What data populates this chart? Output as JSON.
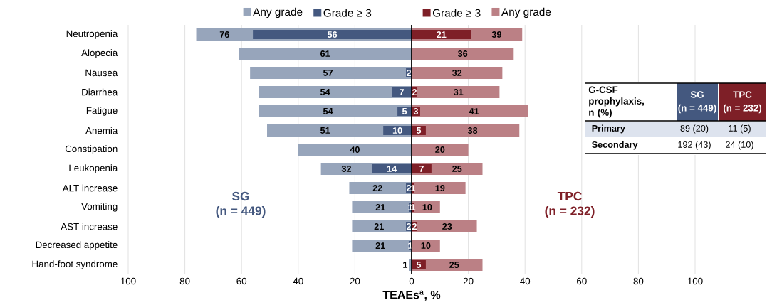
{
  "chart_data": [
    {
      "type": "bar",
      "orientation": "horizontal",
      "xlabel": "TEAEs$^{a}$, %",
      "categories": [
        "Neutropenia",
        "Alopecia",
        "Nausea",
        "Diarrhea",
        "Fatigue",
        "Anemia",
        "Constipation",
        "Leukopenia",
        "ALT increase",
        "Vomiting",
        "AST increase",
        "Decreased appetite",
        "Hand-foot syndrome"
      ],
      "series": [
        {
          "name": "Any grade",
          "color": "#97a5bb",
          "values": [
            76,
            61,
            57,
            54,
            54,
            51,
            40,
            32,
            22,
            21,
            21,
            21,
            1
          ]
        },
        {
          "name": "Grade ≥ 3",
          "color": "#44587f",
          "values": [
            56,
            null,
            2,
            7,
            5,
            10,
            null,
            14,
            2,
            1,
            2,
            1,
            null
          ]
        }
      ],
      "xlim": [
        100,
        0
      ],
      "xticks": [
        100,
        80,
        60,
        40,
        20,
        0
      ],
      "grid": "x",
      "legend": "top",
      "data_labels": true,
      "annotations": [
        "SG",
        "(n = 449)"
      ]
    },
    {
      "type": "bar",
      "orientation": "horizontal",
      "series": [
        {
          "name": "Any grade",
          "color": "#bb8085",
          "values": [
            39,
            36,
            32,
            31,
            41,
            38,
            20,
            25,
            19,
            10,
            23,
            10,
            25
          ]
        },
        {
          "name": "Grade ≥ 3",
          "color": "#7e1f27",
          "values": [
            21,
            null,
            null,
            2,
            3,
            5,
            null,
            7,
            1,
            1,
            2,
            null,
            5
          ]
        }
      ],
      "xlim": [
        0,
        100
      ],
      "xticks": [
        20,
        40,
        60,
        80,
        100
      ],
      "grid": "x",
      "legend": "top",
      "data_labels": true,
      "annotations": [
        "TPC",
        "(n = 232)"
      ]
    },
    {
      "type": "other",
      "categories": [
        "SG",
        "TPC"
      ],
      "annotations": [
        "G-CSF prophylaxis, n (%)",
        "(n = 449)",
        "(n = 232)"
      ],
      "colors": [
        "#44587f",
        "#7e1f27"
      ],
      "y_categories": [
        "Primary",
        "Secondary"
      ],
      "cell_labels": [
        [
          "89 (20)",
          "11 (5)"
        ],
        [
          "192 (43)",
          "24 (10)"
        ]
      ]
    }
  ]
}
